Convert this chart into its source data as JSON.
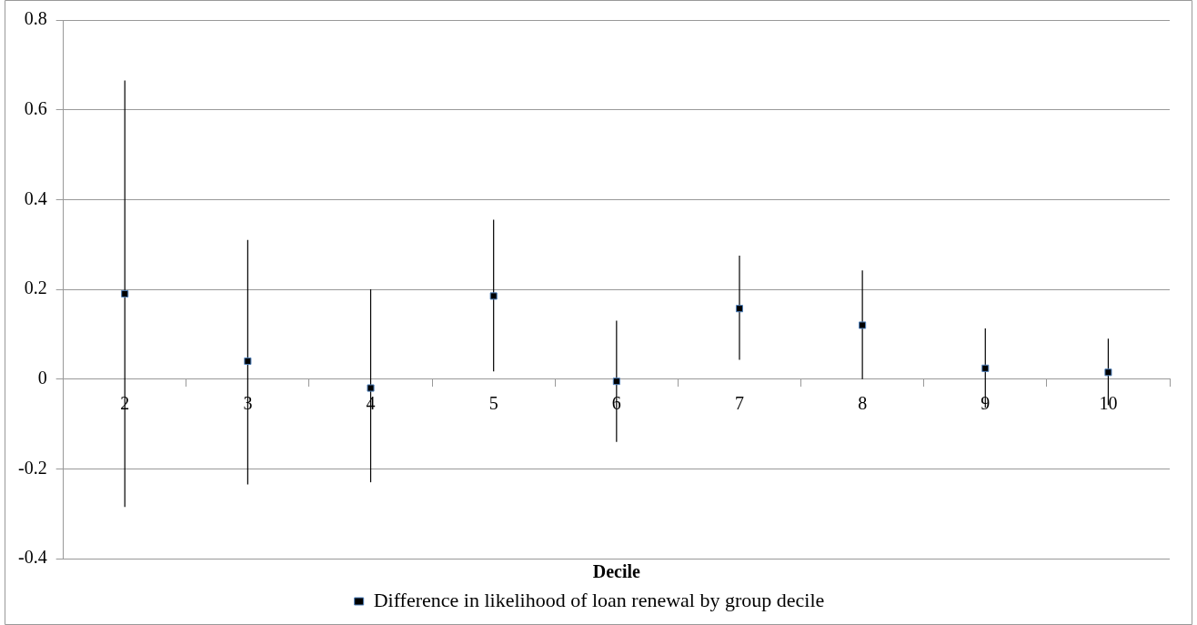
{
  "chart_data": {
    "type": "scatter",
    "xlabel": "Decile",
    "categories": [
      "2",
      "3",
      "4",
      "5",
      "6",
      "7",
      "8",
      "9",
      "10"
    ],
    "series": [
      {
        "name": "Difference in likelihood of loan renewal by group decile",
        "color": "#000000",
        "values": [
          0.19,
          0.04,
          -0.02,
          0.185,
          -0.005,
          0.157,
          0.12,
          0.024,
          0.015
        ],
        "errors": [
          [
            -0.285,
            0.665
          ],
          [
            -0.235,
            0.31
          ],
          [
            -0.23,
            0.2
          ],
          [
            0.017,
            0.355
          ],
          [
            -0.14,
            0.13
          ],
          [
            0.043,
            0.275
          ],
          [
            0,
            0.242
          ],
          [
            -0.064,
            0.113
          ],
          [
            -0.058,
            0.09
          ]
        ]
      }
    ],
    "ylim": [
      -0.4,
      0.8
    ],
    "yticks": [
      -0.4,
      -0.2,
      0,
      0.2,
      0.4,
      0.6,
      0.8
    ],
    "grid": "y",
    "legend": "bottom",
    "marker": "square"
  }
}
